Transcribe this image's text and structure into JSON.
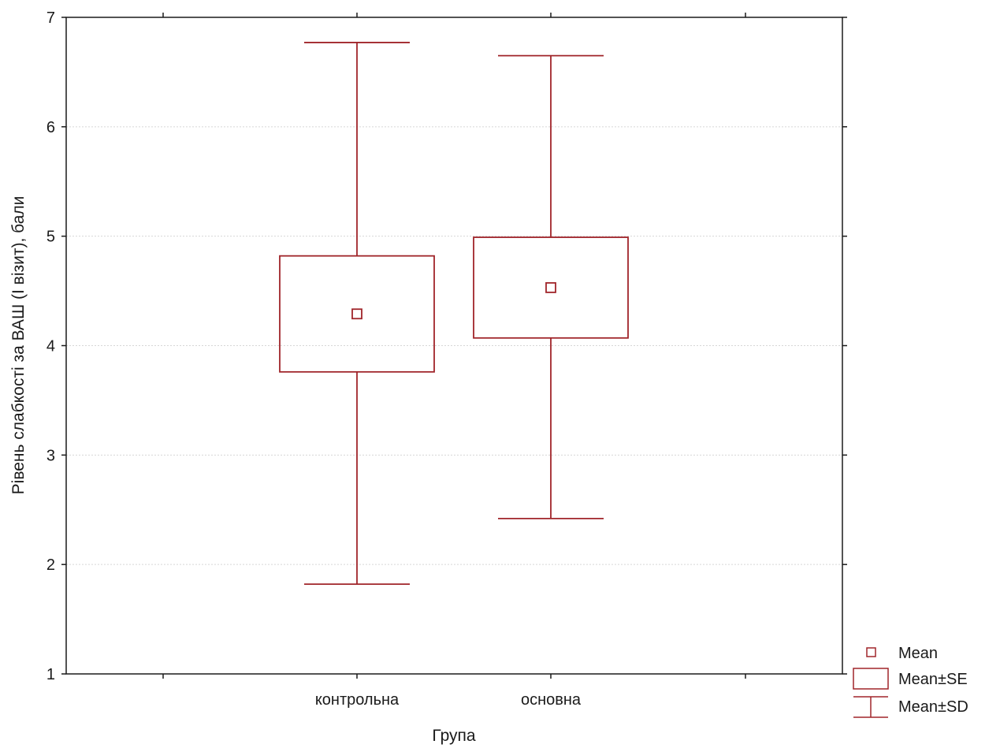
{
  "chart_data": {
    "type": "box",
    "xlabel": "Група",
    "ylabel": "Рівень слабкості за ВАШ (І візит), бали",
    "ylim": [
      1,
      7
    ],
    "yticks": [
      1,
      2,
      3,
      4,
      5,
      6,
      7
    ],
    "grid": true,
    "categories": [
      "контрольна",
      "основна"
    ],
    "groups": [
      {
        "category": "контрольна",
        "mean": 4.29,
        "se_low": 3.76,
        "se_high": 4.82,
        "sd_low": 1.82,
        "sd_high": 6.77
      },
      {
        "category": "основна",
        "mean": 4.53,
        "se_low": 4.07,
        "se_high": 4.99,
        "sd_low": 2.42,
        "sd_high": 6.65
      }
    ],
    "legend": {
      "position": "bottom-right",
      "items": [
        "Mean",
        "Mean±SE",
        "Mean±SD"
      ]
    },
    "colors": {
      "series": "#a0252a",
      "grid": "#d6d6d6",
      "axis": "#1a1a1a"
    }
  }
}
